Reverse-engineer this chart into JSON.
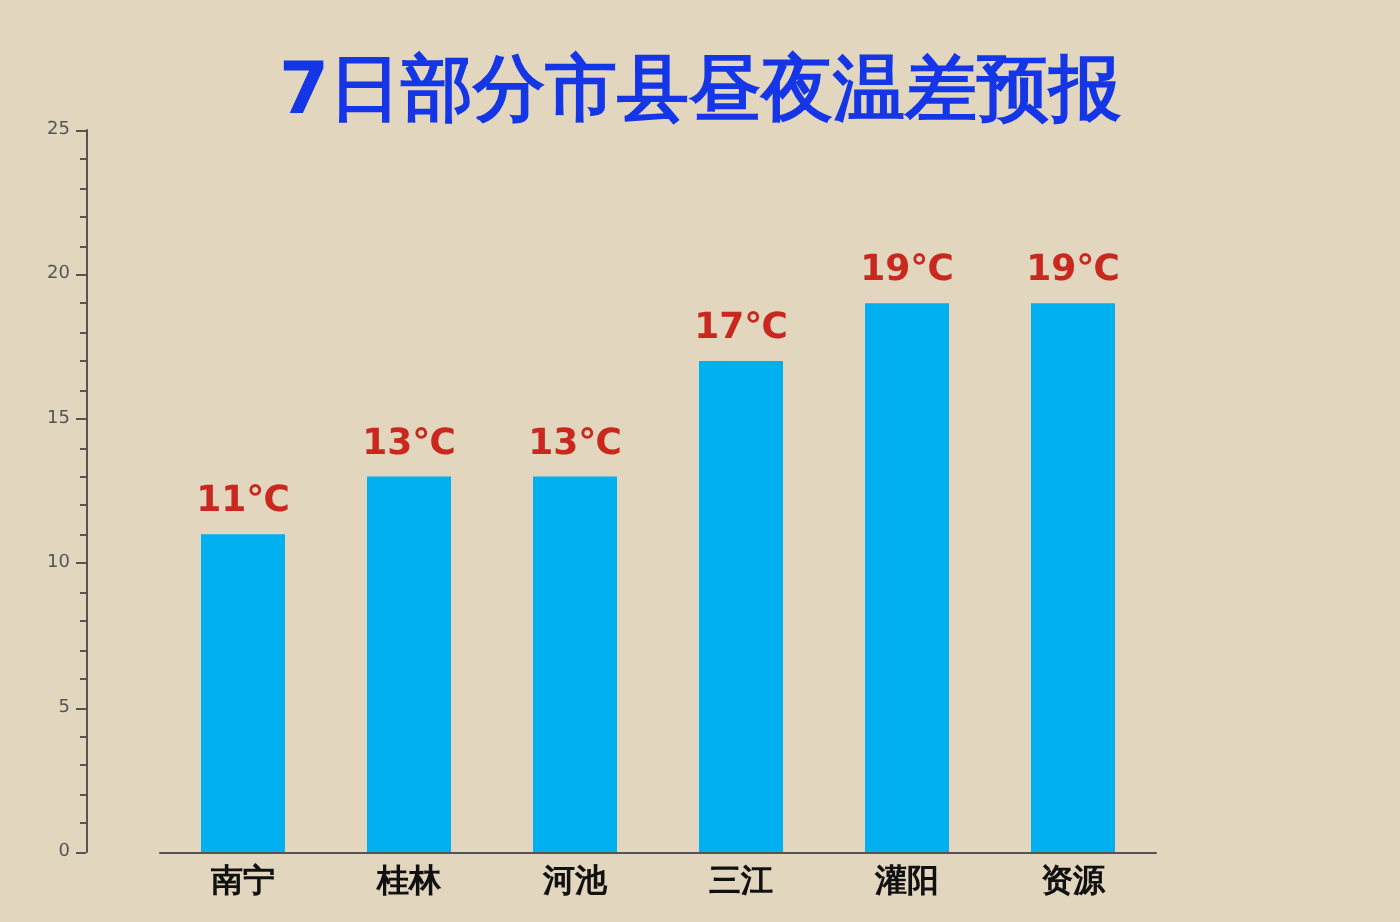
{
  "chart_data": {
    "type": "bar",
    "title": "7日部分市县昼夜温差预报",
    "categories": [
      "南宁",
      "桂林",
      "河池",
      "三江",
      "灌阳",
      "资源"
    ],
    "values": [
      11,
      13,
      13,
      17,
      19,
      19
    ],
    "value_labels": [
      "11℃",
      "13℃",
      "13℃",
      "17℃",
      "19℃",
      "19℃"
    ],
    "color": "#00b0f0",
    "ylim": [
      0,
      25
    ],
    "yticks": [
      0,
      5,
      10,
      15,
      20,
      25
    ]
  }
}
